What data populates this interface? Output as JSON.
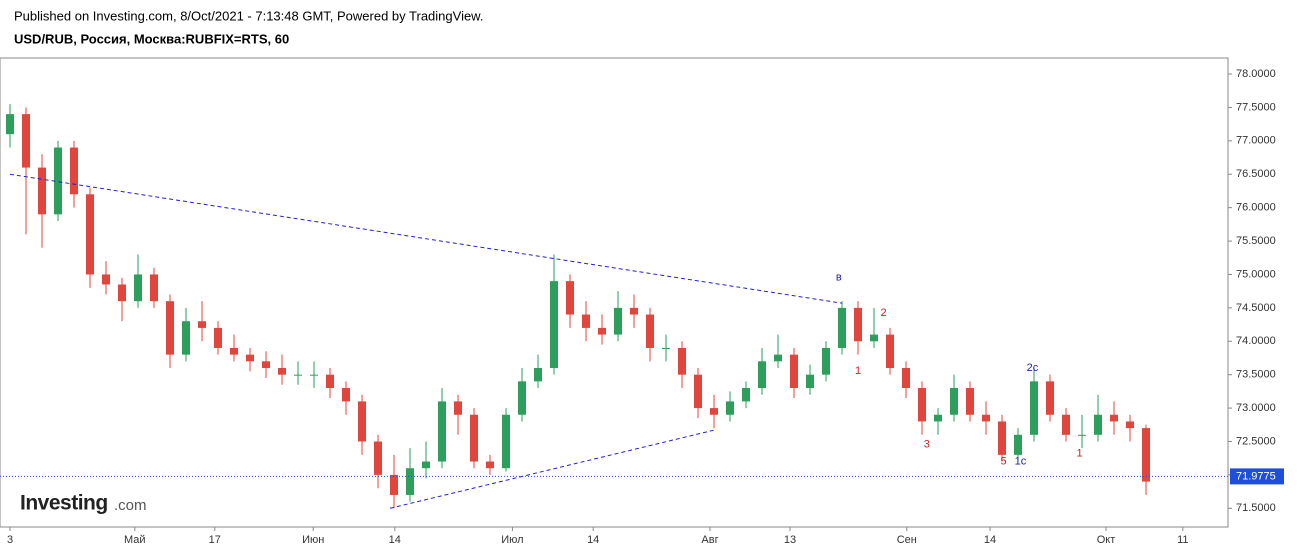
{
  "header": {
    "published": "Published on Investing.com, 8/Oct/2021 - 7:13:48 GMT, Powered by TradingView.",
    "symbol": "USD/RUB, Россия, Москва:RUBFIX=RTS, 60"
  },
  "logo": {
    "brand": "Investing",
    "suffix": ".com"
  },
  "chart_data": {
    "type": "candlestick",
    "x": [
      0,
      2,
      4,
      6,
      8,
      10,
      12,
      14,
      16,
      18,
      20,
      22,
      24,
      26,
      28,
      30,
      32,
      34,
      36,
      38,
      40,
      42,
      44,
      46,
      48,
      50,
      52,
      54,
      56,
      58,
      60,
      62,
      64,
      66,
      68,
      70,
      72,
      74,
      76,
      78,
      80,
      82,
      84,
      86,
      88,
      90,
      92,
      94,
      96,
      98,
      100,
      102,
      104,
      106,
      108,
      110,
      112,
      114,
      116,
      118,
      120,
      122,
      124,
      126,
      128,
      130,
      132,
      134,
      136,
      138,
      140,
      142
    ],
    "series": [
      {
        "up_color": "#2e9e5b",
        "down_color": "#e0463e",
        "values": [
          [
            77.1,
            77.55,
            76.9,
            77.4
          ],
          [
            77.4,
            77.5,
            75.6,
            76.6
          ],
          [
            76.6,
            76.8,
            75.4,
            75.9
          ],
          [
            75.9,
            77.0,
            75.8,
            76.9
          ],
          [
            76.9,
            77.0,
            76.0,
            76.2
          ],
          [
            76.2,
            76.3,
            74.8,
            75.0
          ],
          [
            75.0,
            75.2,
            74.7,
            74.85
          ],
          [
            74.85,
            74.95,
            74.3,
            74.6
          ],
          [
            74.6,
            75.3,
            74.5,
            75.0
          ],
          [
            75.0,
            75.1,
            74.5,
            74.6
          ],
          [
            74.6,
            74.7,
            73.6,
            73.8
          ],
          [
            73.8,
            74.5,
            73.7,
            74.3
          ],
          [
            74.3,
            74.6,
            74.0,
            74.2
          ],
          [
            74.2,
            74.3,
            73.8,
            73.9
          ],
          [
            73.9,
            74.1,
            73.7,
            73.8
          ],
          [
            73.8,
            73.9,
            73.55,
            73.7
          ],
          [
            73.7,
            73.85,
            73.45,
            73.6
          ],
          [
            73.6,
            73.8,
            73.35,
            73.5
          ],
          [
            73.5,
            73.7,
            73.35,
            73.5
          ],
          [
            73.5,
            73.7,
            73.3,
            73.5
          ],
          [
            73.5,
            73.6,
            73.15,
            73.3
          ],
          [
            73.3,
            73.4,
            72.9,
            73.1
          ],
          [
            73.1,
            73.2,
            72.3,
            72.5
          ],
          [
            72.5,
            72.6,
            71.8,
            72.0
          ],
          [
            72.0,
            72.3,
            71.5,
            71.7
          ],
          [
            71.7,
            72.4,
            71.6,
            72.1
          ],
          [
            72.1,
            72.5,
            71.95,
            72.2
          ],
          [
            72.2,
            73.3,
            72.1,
            73.1
          ],
          [
            73.1,
            73.2,
            72.6,
            72.9
          ],
          [
            72.9,
            73.0,
            72.1,
            72.2
          ],
          [
            72.2,
            72.3,
            72.0,
            72.1
          ],
          [
            72.1,
            73.0,
            72.05,
            72.9
          ],
          [
            72.9,
            73.6,
            72.8,
            73.4
          ],
          [
            73.4,
            73.8,
            73.3,
            73.6
          ],
          [
            73.6,
            75.3,
            73.5,
            74.9
          ],
          [
            74.9,
            75.0,
            74.2,
            74.4
          ],
          [
            74.4,
            74.6,
            74.0,
            74.2
          ],
          [
            74.2,
            74.4,
            73.95,
            74.1
          ],
          [
            74.1,
            74.75,
            74.0,
            74.5
          ],
          [
            74.5,
            74.7,
            74.2,
            74.4
          ],
          [
            74.4,
            74.5,
            73.7,
            73.9
          ],
          [
            73.9,
            74.1,
            73.7,
            73.9
          ],
          [
            73.9,
            74.0,
            73.3,
            73.5
          ],
          [
            73.5,
            73.6,
            72.85,
            73.0
          ],
          [
            73.0,
            73.2,
            72.7,
            72.9
          ],
          [
            72.9,
            73.25,
            72.8,
            73.1
          ],
          [
            73.1,
            73.4,
            73.0,
            73.3
          ],
          [
            73.3,
            73.9,
            73.2,
            73.7
          ],
          [
            73.7,
            74.1,
            73.6,
            73.8
          ],
          [
            73.8,
            73.9,
            73.15,
            73.3
          ],
          [
            73.3,
            73.65,
            73.2,
            73.5
          ],
          [
            73.5,
            74.0,
            73.4,
            73.9
          ],
          [
            73.9,
            74.6,
            73.8,
            74.5
          ],
          [
            74.5,
            74.6,
            73.8,
            74.0
          ],
          [
            74.0,
            74.5,
            73.9,
            74.1
          ],
          [
            74.1,
            74.2,
            73.5,
            73.6
          ],
          [
            73.6,
            73.7,
            73.15,
            73.3
          ],
          [
            73.3,
            73.4,
            72.6,
            72.8
          ],
          [
            72.8,
            73.0,
            72.6,
            72.9
          ],
          [
            72.9,
            73.5,
            72.8,
            73.3
          ],
          [
            73.3,
            73.4,
            72.8,
            72.9
          ],
          [
            72.9,
            73.1,
            72.6,
            72.8
          ],
          [
            72.8,
            72.9,
            72.2,
            72.3
          ],
          [
            72.3,
            72.7,
            72.2,
            72.6
          ],
          [
            72.6,
            73.6,
            72.5,
            73.4
          ],
          [
            73.4,
            73.5,
            72.8,
            72.9
          ],
          [
            72.9,
            73.0,
            72.5,
            72.6
          ],
          [
            72.6,
            72.9,
            72.4,
            72.6
          ],
          [
            72.6,
            73.2,
            72.5,
            72.9
          ],
          [
            72.9,
            73.1,
            72.6,
            72.8
          ],
          [
            72.8,
            72.9,
            72.5,
            72.7
          ],
          [
            72.7,
            72.75,
            71.7,
            71.9
          ]
        ]
      }
    ],
    "xlim": [
      -1.25,
      152.25
    ],
    "ylim": [
      71.22,
      78.24
    ],
    "xticks": [
      {
        "value": 0,
        "label": "3"
      },
      {
        "value": 15.6,
        "label": "Май"
      },
      {
        "value": 25.6,
        "label": "17"
      },
      {
        "value": 37.9,
        "label": "Июн"
      },
      {
        "value": 48.1,
        "label": "14"
      },
      {
        "value": 62.8,
        "label": "Июл"
      },
      {
        "value": 72.9,
        "label": "14"
      },
      {
        "value": 87.5,
        "label": "Авг"
      },
      {
        "value": 97.5,
        "label": "13"
      },
      {
        "value": 112.1,
        "label": "Сен"
      },
      {
        "value": 122.5,
        "label": "14"
      },
      {
        "value": 137,
        "label": "Окт"
      },
      {
        "value": 146.6,
        "label": "11"
      }
    ],
    "yticks": [
      {
        "value": 71.5,
        "label": "71.5000"
      },
      {
        "value": 72,
        "label": "72.0000"
      },
      {
        "value": 72.5,
        "label": "72.5000"
      },
      {
        "value": 73,
        "label": "73.0000"
      },
      {
        "value": 73.5,
        "label": "73.5000"
      },
      {
        "value": 74,
        "label": "74.0000"
      },
      {
        "value": 74.5,
        "label": "74.5000"
      },
      {
        "value": 75,
        "label": "75.0000"
      },
      {
        "value": 75.5,
        "label": "75.5000"
      },
      {
        "value": 76,
        "label": "76.0000"
      },
      {
        "value": 76.5,
        "label": "76.5000"
      },
      {
        "value": 77,
        "label": "77.0000"
      },
      {
        "value": 77.5,
        "label": "77.5000"
      },
      {
        "value": 78,
        "label": "78.0000"
      }
    ],
    "last_price": 71.9775,
    "last_price_color": "#1e4fd8",
    "trend_lines": [
      {
        "x": [
          0,
          104
        ],
        "y": [
          76.5,
          74.57
        ],
        "color": "#2222cc"
      },
      {
        "x": [
          47.5,
          88
        ],
        "y": [
          71.5,
          72.67
        ],
        "color": "#2222cc"
      }
    ],
    "annotations": [
      {
        "text": "в",
        "x": 103.6,
        "y": 74.95,
        "color": "#2222aa"
      },
      {
        "text": "2",
        "x": 109.2,
        "y": 74.42,
        "color": "#cc2222"
      },
      {
        "text": "1",
        "x": 106,
        "y": 73.55,
        "color": "#cc2222"
      },
      {
        "text": "3",
        "x": 114.6,
        "y": 72.45,
        "color": "#cc2222"
      },
      {
        "text": "5",
        "x": 124.2,
        "y": 72.2,
        "color": "#cc2222"
      },
      {
        "text": "1c",
        "x": 126.3,
        "y": 72.2,
        "color": "#2222aa"
      },
      {
        "text": "2c",
        "x": 127.8,
        "y": 73.6,
        "color": "#2222aa"
      },
      {
        "text": "1",
        "x": 133.7,
        "y": 72.32,
        "color": "#cc2222"
      }
    ]
  }
}
